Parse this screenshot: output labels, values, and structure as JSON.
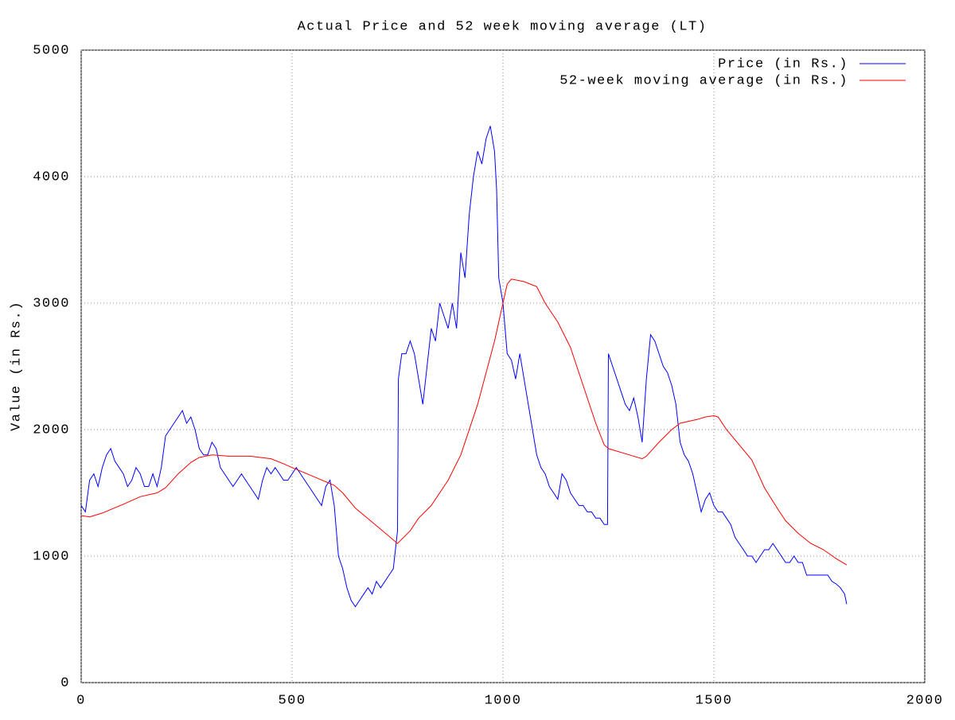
{
  "chart_data": {
    "type": "line",
    "title": "Actual Price and 52 week moving average (LT)",
    "y_label": "Value (in Rs.)",
    "xlim": [
      0,
      2000
    ],
    "xticks": [
      0,
      500,
      1000,
      1500,
      2000
    ],
    "ylim": [
      0,
      5000
    ],
    "yticks": [
      0,
      1000,
      2000,
      3000,
      4000,
      5000
    ],
    "grid": true,
    "legend": "top-right",
    "series": [
      {
        "name": "Price (in Rs.)",
        "color": "#0000ff",
        "x": [
          0,
          10,
          20,
          30,
          40,
          50,
          60,
          70,
          80,
          90,
          100,
          110,
          120,
          130,
          140,
          150,
          160,
          170,
          180,
          190,
          200,
          210,
          220,
          230,
          240,
          250,
          260,
          270,
          280,
          290,
          300,
          310,
          320,
          330,
          340,
          350,
          360,
          370,
          380,
          390,
          400,
          410,
          420,
          430,
          440,
          450,
          460,
          470,
          480,
          490,
          500,
          510,
          520,
          530,
          540,
          550,
          560,
          570,
          580,
          590,
          600,
          610,
          620,
          630,
          640,
          650,
          660,
          670,
          680,
          690,
          700,
          710,
          720,
          730,
          740,
          750,
          752,
          760,
          770,
          780,
          790,
          800,
          810,
          820,
          830,
          840,
          850,
          860,
          870,
          880,
          890,
          900,
          910,
          920,
          930,
          940,
          950,
          960,
          970,
          980,
          985,
          990,
          1000,
          1010,
          1020,
          1030,
          1040,
          1050,
          1060,
          1070,
          1080,
          1090,
          1100,
          1110,
          1120,
          1130,
          1140,
          1150,
          1160,
          1170,
          1180,
          1190,
          1200,
          1210,
          1220,
          1230,
          1240,
          1248,
          1250,
          1260,
          1270,
          1280,
          1290,
          1300,
          1310,
          1320,
          1330,
          1340,
          1350,
          1360,
          1370,
          1380,
          1390,
          1400,
          1410,
          1420,
          1430,
          1440,
          1450,
          1460,
          1470,
          1480,
          1490,
          1500,
          1510,
          1520,
          1530,
          1540,
          1550,
          1560,
          1570,
          1580,
          1590,
          1600,
          1610,
          1620,
          1630,
          1640,
          1650,
          1660,
          1670,
          1680,
          1690,
          1700,
          1710,
          1720,
          1730,
          1740,
          1750,
          1760,
          1770,
          1780,
          1790,
          1800,
          1810,
          1815
        ],
        "values": [
          1400,
          1350,
          1600,
          1650,
          1550,
          1700,
          1800,
          1850,
          1750,
          1700,
          1650,
          1550,
          1600,
          1700,
          1650,
          1550,
          1550,
          1650,
          1550,
          1700,
          1950,
          2000,
          2050,
          2100,
          2150,
          2050,
          2100,
          2000,
          1850,
          1800,
          1800,
          1900,
          1850,
          1700,
          1650,
          1600,
          1550,
          1600,
          1650,
          1600,
          1550,
          1500,
          1450,
          1600,
          1700,
          1650,
          1700,
          1650,
          1600,
          1600,
          1650,
          1700,
          1650,
          1600,
          1550,
          1500,
          1450,
          1400,
          1550,
          1600,
          1400,
          1000,
          900,
          750,
          650,
          600,
          650,
          700,
          750,
          700,
          800,
          750,
          800,
          850,
          900,
          1200,
          2400,
          2600,
          2600,
          2700,
          2600,
          2400,
          2200,
          2500,
          2800,
          2700,
          3000,
          2900,
          2800,
          3000,
          2800,
          3400,
          3200,
          3700,
          4000,
          4200,
          4100,
          4300,
          4400,
          4200,
          3900,
          3200,
          3000,
          2600,
          2550,
          2400,
          2600,
          2400,
          2200,
          2000,
          1800,
          1700,
          1650,
          1550,
          1500,
          1450,
          1650,
          1600,
          1500,
          1450,
          1400,
          1400,
          1350,
          1350,
          1300,
          1300,
          1250,
          1250,
          2600,
          2500,
          2400,
          2300,
          2200,
          2150,
          2250,
          2100,
          1900,
          2400,
          2750,
          2700,
          2600,
          2500,
          2450,
          2350,
          2200,
          1900,
          1800,
          1750,
          1650,
          1500,
          1350,
          1450,
          1500,
          1400,
          1350,
          1350,
          1300,
          1250,
          1150,
          1100,
          1050,
          1000,
          1000,
          950,
          1000,
          1050,
          1050,
          1100,
          1050,
          1000,
          950,
          950,
          1000,
          950,
          950,
          850,
          850,
          850,
          850,
          850,
          850,
          800,
          780,
          750,
          700,
          620
        ]
      },
      {
        "name": "52-week moving average (in Rs.)",
        "color": "#ff0000",
        "x": [
          0,
          20,
          50,
          100,
          140,
          180,
          200,
          230,
          260,
          280,
          310,
          350,
          400,
          450,
          480,
          500,
          550,
          600,
          620,
          650,
          700,
          750,
          780,
          800,
          830,
          870,
          900,
          940,
          980,
          1000,
          1010,
          1020,
          1050,
          1080,
          1100,
          1130,
          1160,
          1190,
          1220,
          1240,
          1250,
          1300,
          1330,
          1340,
          1370,
          1400,
          1420,
          1460,
          1480,
          1500,
          1510,
          1530,
          1560,
          1590,
          1620,
          1650,
          1670,
          1700,
          1730,
          1760,
          1790,
          1815
        ],
        "values": [
          1320,
          1310,
          1340,
          1410,
          1470,
          1500,
          1540,
          1650,
          1740,
          1780,
          1800,
          1790,
          1790,
          1770,
          1730,
          1700,
          1630,
          1560,
          1500,
          1380,
          1240,
          1100,
          1200,
          1300,
          1400,
          1600,
          1800,
          2200,
          2700,
          3000,
          3150,
          3190,
          3170,
          3130,
          3000,
          2850,
          2650,
          2350,
          2050,
          1880,
          1850,
          1800,
          1770,
          1790,
          1900,
          2000,
          2050,
          2080,
          2100,
          2110,
          2100,
          2000,
          1880,
          1760,
          1540,
          1380,
          1280,
          1180,
          1100,
          1050,
          980,
          930
        ]
      }
    ]
  }
}
